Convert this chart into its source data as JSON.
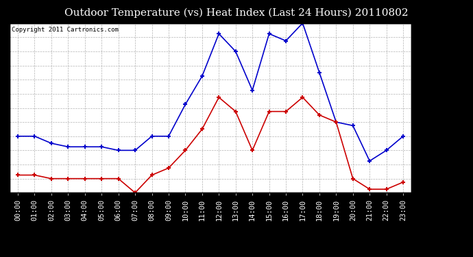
{
  "title": "Outdoor Temperature (vs) Heat Index (Last 24 Hours) 20110802",
  "copyright": "Copyright 2011 Cartronics.com",
  "x_labels": [
    "00:00",
    "01:00",
    "02:00",
    "03:00",
    "04:00",
    "05:00",
    "06:00",
    "07:00",
    "08:00",
    "09:00",
    "10:00",
    "11:00",
    "12:00",
    "13:00",
    "14:00",
    "15:00",
    "16:00",
    "17:00",
    "18:00",
    "19:00",
    "20:00",
    "21:00",
    "22:00",
    "23:00"
  ],
  "heat_index": [
    86.0,
    86.0,
    85.0,
    84.5,
    84.5,
    84.5,
    84.0,
    84.0,
    86.0,
    86.0,
    90.5,
    94.5,
    100.5,
    98.0,
    92.5,
    100.5,
    99.5,
    102.0,
    95.0,
    88.0,
    87.5,
    82.5,
    84.0,
    86.0
  ],
  "outdoor_temp": [
    80.5,
    80.5,
    80.0,
    80.0,
    80.0,
    80.0,
    80.0,
    78.0,
    80.5,
    81.5,
    84.0,
    87.0,
    91.5,
    89.5,
    84.0,
    89.5,
    89.5,
    91.5,
    89.0,
    88.0,
    80.0,
    78.5,
    78.5,
    79.5
  ],
  "ylim": [
    78.0,
    102.0
  ],
  "ytick_step": 2.0,
  "heat_index_color": "#0000cc",
  "outdoor_temp_color": "#cc0000",
  "grid_color": "#aaaaaa",
  "bg_color": "#000000",
  "plot_bg_color": "#ffffff",
  "title_fontsize": 11,
  "copyright_fontsize": 6.5,
  "tick_label_fontsize": 7.5,
  "xtick_label_fontsize": 7.5
}
